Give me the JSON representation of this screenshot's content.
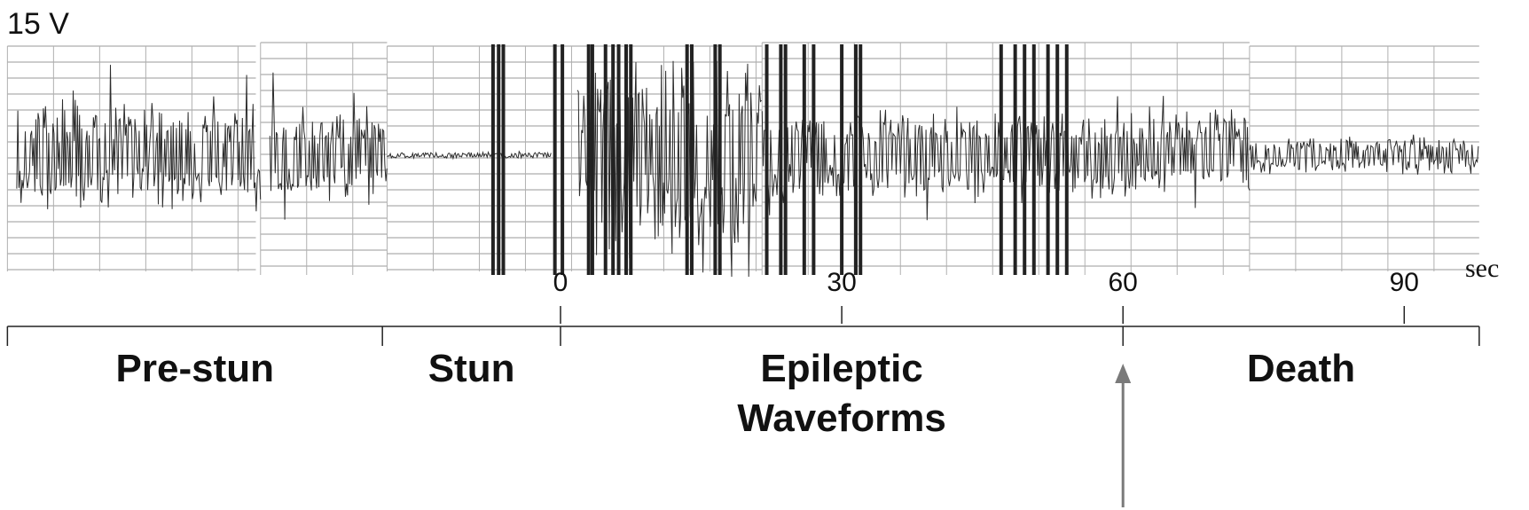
{
  "chart_data": {
    "type": "line",
    "title": "",
    "scale_label": "15 V",
    "xlabel": "sec",
    "x_ticks": [
      0,
      30,
      60,
      90
    ],
    "xlim": [
      -59,
      98
    ],
    "phases": [
      {
        "label": "Pre-stun",
        "start": -59,
        "end": -19
      },
      {
        "label": "Stun",
        "start": -19,
        "end": 0
      },
      {
        "label": "Epileptic Waveforms",
        "lines": [
          "Epileptic",
          "Waveforms"
        ],
        "start": 0,
        "end": 60
      },
      {
        "label": "Death",
        "start": 60,
        "end": 98
      }
    ],
    "arrow_at": 60,
    "series": [
      {
        "segments": [
          {
            "start": -58,
            "end": -32,
            "amplitude": 0.55
          },
          {
            "start": -31,
            "end": -18.5,
            "amplitude": 0.5
          },
          {
            "start": -18.5,
            "end": -1,
            "amplitude": 0.03
          },
          {
            "start": 1.8,
            "end": 21.5,
            "amplitude": 1.0
          },
          {
            "start": 21.5,
            "end": 73.5,
            "amplitude": 0.45
          },
          {
            "start": 73.5,
            "end": 98,
            "amplitude": 0.18
          }
        ],
        "spikes": [
          -7.2,
          -6.6,
          -6.1,
          -0.6,
          0.2,
          3.0,
          3.4,
          4.8,
          5.6,
          6.2,
          7.0,
          7.5,
          13.5,
          14.0,
          16.5,
          17.0,
          22.0,
          23.5,
          24.0,
          26.0,
          27.0,
          30.0,
          31.5,
          32.0,
          47.0,
          48.5,
          49.5,
          50.5,
          52.0,
          53.0,
          54.0
        ]
      }
    ]
  }
}
